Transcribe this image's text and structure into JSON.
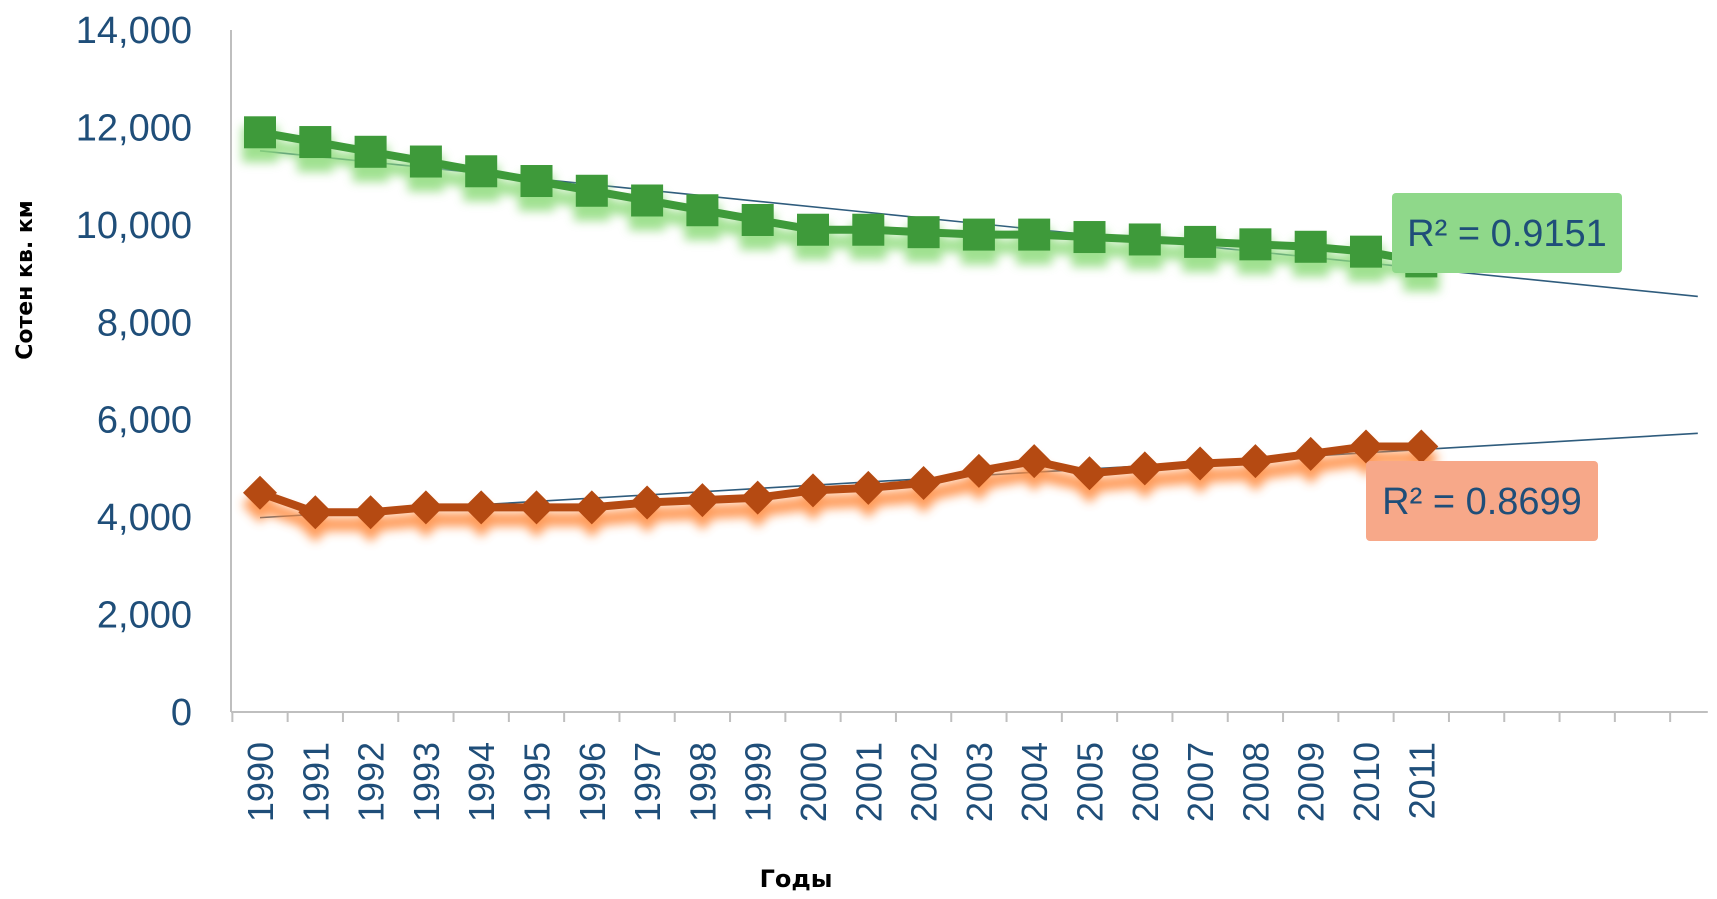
{
  "chart_data": {
    "type": "line",
    "title": "",
    "xlabel": "Годы",
    "ylabel": "Сотен кв. км",
    "ylim": [
      0,
      14000
    ],
    "y_ticks": [
      0,
      2000,
      4000,
      6000,
      8000,
      10000,
      12000,
      14000
    ],
    "y_tick_labels": [
      "0",
      "2,000",
      "4,000",
      "6,000",
      "8,000",
      "10,000",
      "12,000",
      "14,000"
    ],
    "categories": [
      "1990",
      "1991",
      "1992",
      "1993",
      "1994",
      "1995",
      "1996",
      "1997",
      "1998",
      "1999",
      "2000",
      "2001",
      "2002",
      "2003",
      "2004",
      "2005",
      "2006",
      "2007",
      "2008",
      "2009",
      "2010",
      "2011"
    ],
    "grid": false,
    "series": [
      {
        "values": [
          11900,
          11700,
          11500,
          11300,
          11100,
          10900,
          10700,
          10500,
          10300,
          10100,
          9900,
          9900,
          9850,
          9800,
          9800,
          9750,
          9700,
          9650,
          9600,
          9550,
          9450,
          9250
        ],
        "color": "#3e9a3a",
        "glow": "#8fdc7d",
        "marker": "square",
        "trendline": {
          "start": 11520,
          "end": 8530,
          "extends_to_category_index": 26
        },
        "r2_label": "R² = 0.9151",
        "r2_box_color": "#8fd88a"
      },
      {
        "values": [
          4500,
          4100,
          4100,
          4200,
          4200,
          4200,
          4200,
          4300,
          4350,
          4400,
          4550,
          4600,
          4700,
          4950,
          5150,
          4900,
          5000,
          5100,
          5150,
          5300,
          5450,
          5450
        ],
        "color": "#b54a12",
        "glow": "#ff8a3c",
        "marker": "diamond",
        "trendline": {
          "start": 3990,
          "end": 5720,
          "extends_to_category_index": 26
        },
        "r2_label": "R² = 0.8699",
        "r2_box_color": "#f7a889"
      }
    ]
  }
}
